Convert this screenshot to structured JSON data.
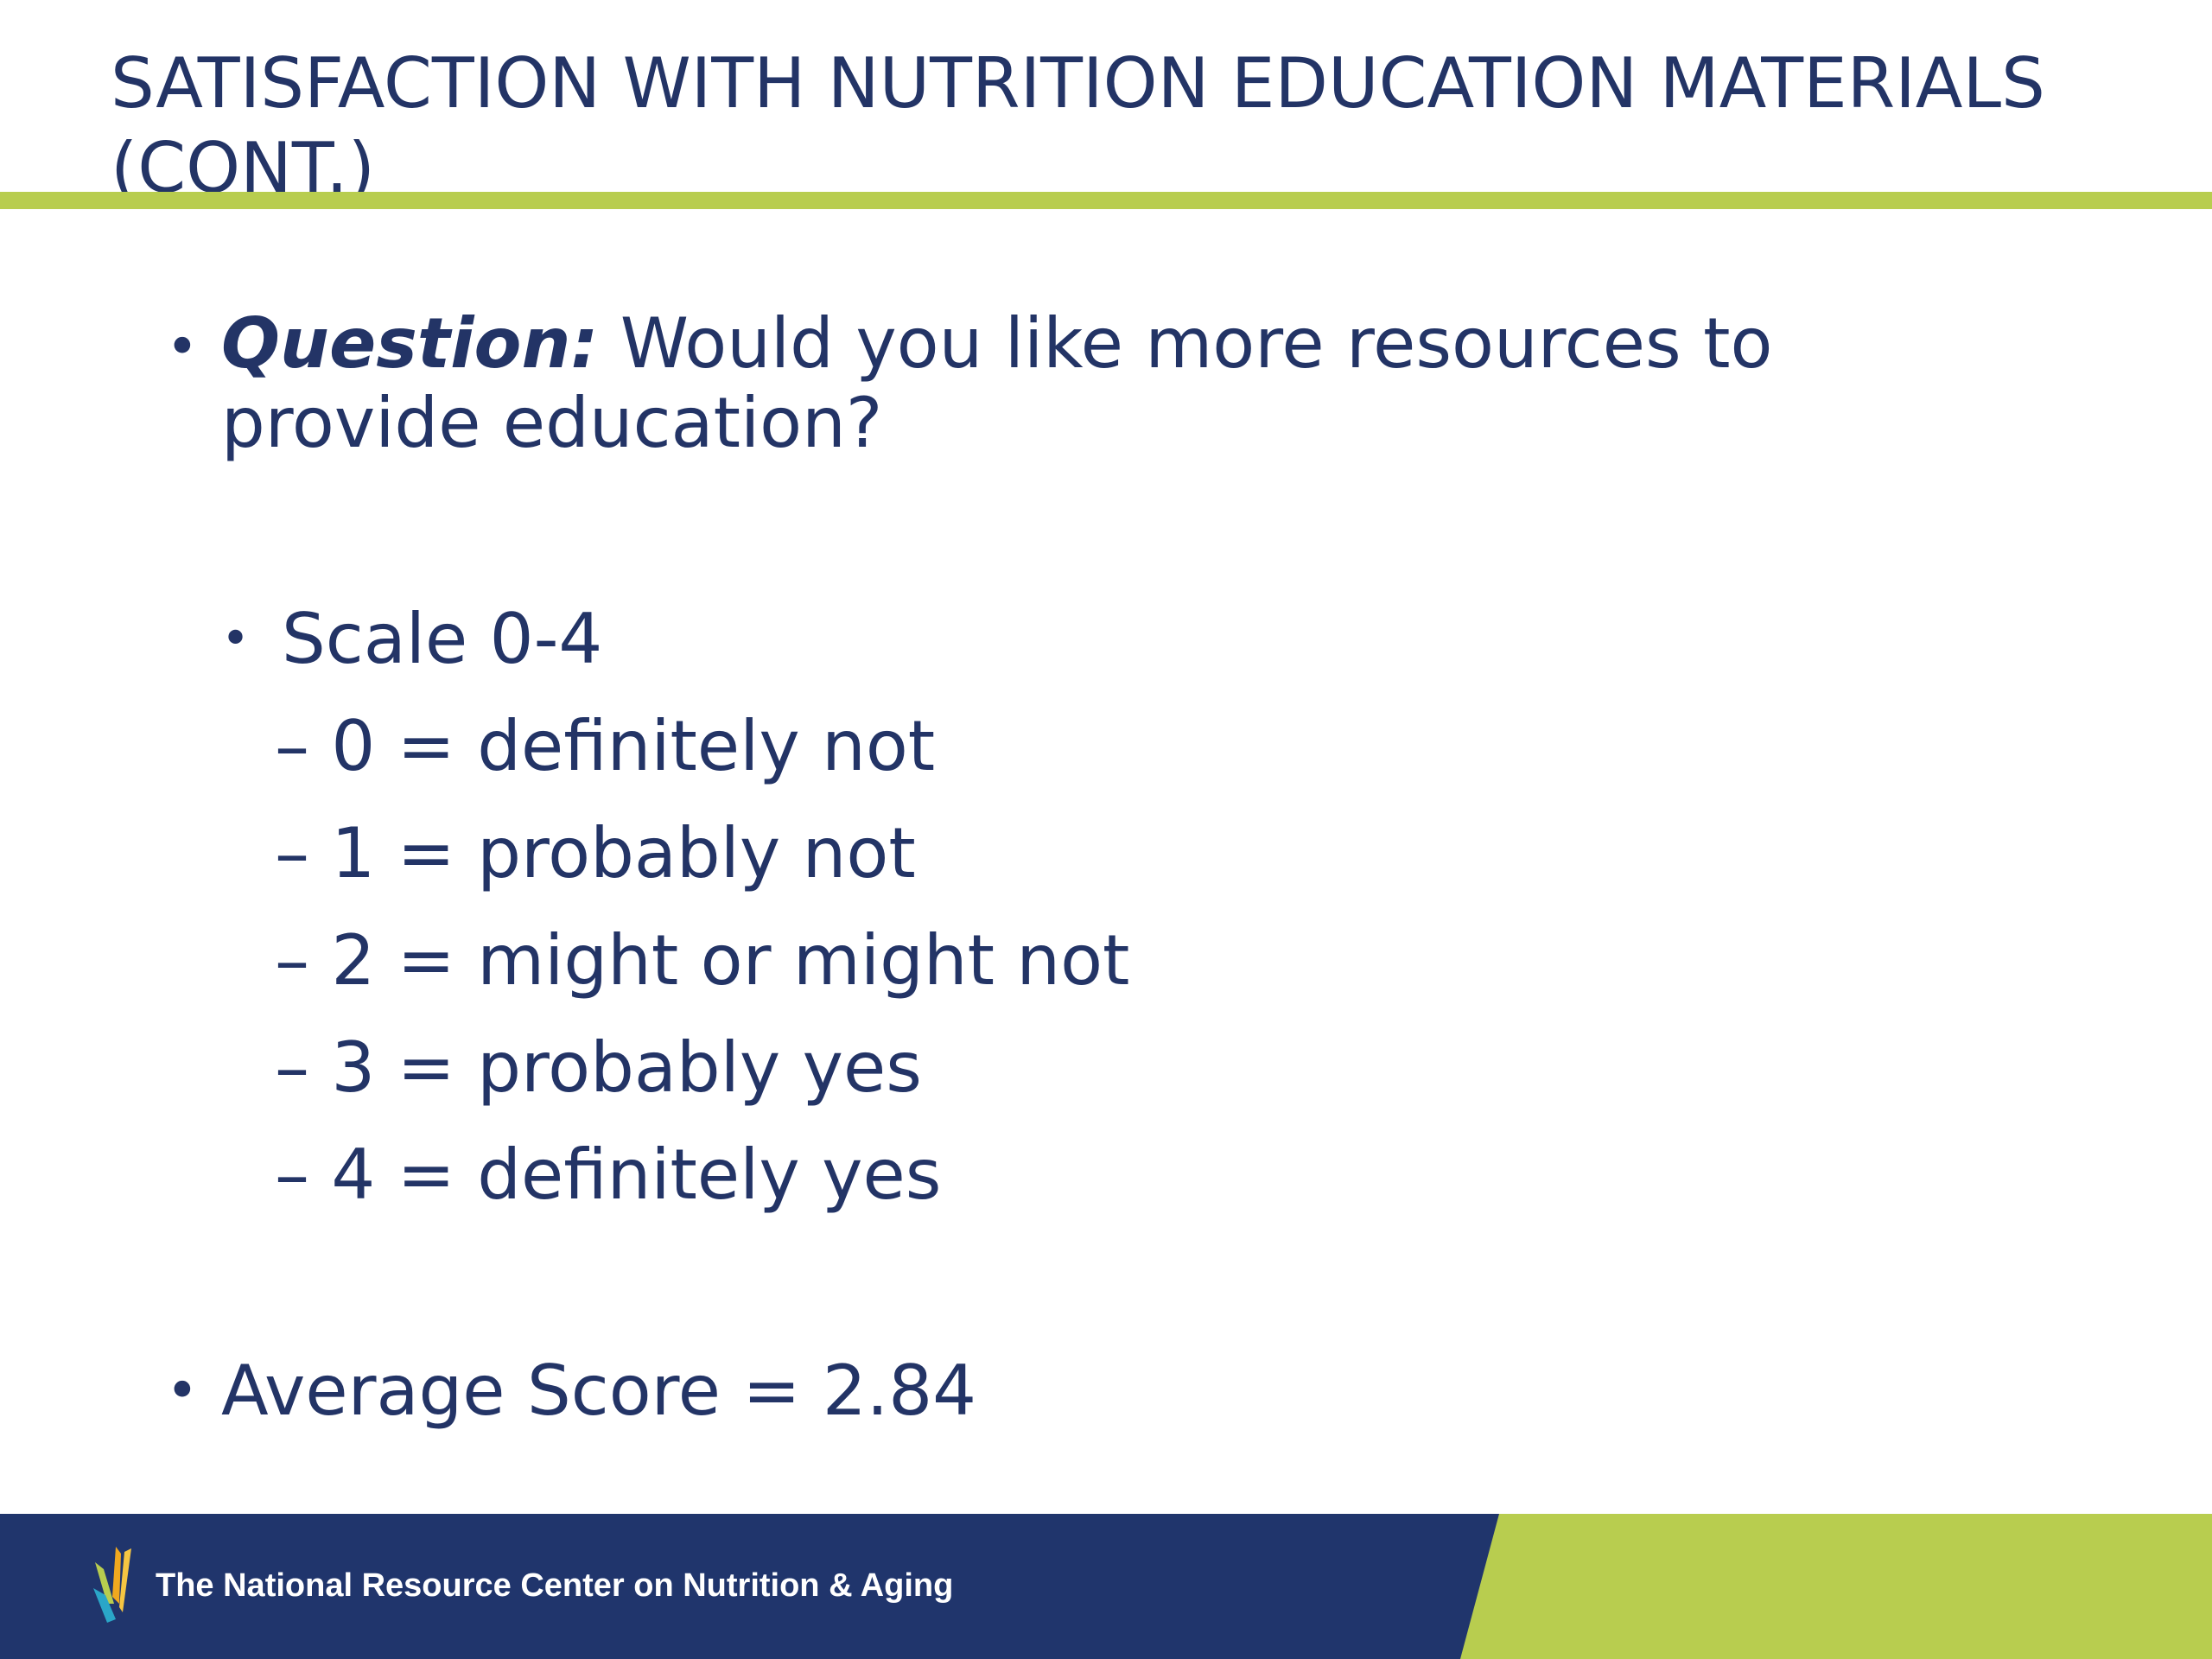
{
  "slide": {
    "title_line1": "SATISFACTION WITH NUTRITION EDUCATION MATERIALS",
    "title_line2": "(CONT.)",
    "bullets": {
      "dot": "•",
      "question_label": "Question:",
      "question_line1": " Would you like more resources to",
      "question_line2": "provide education?",
      "scale_heading": "Scale 0-4",
      "average_score": "Average Score = 2.84"
    },
    "scale_items": [
      "– 0 = definitely not",
      "– 1 = probably not",
      "– 2 = might or might not",
      "– 3 = probably yes",
      "– 4 = definitely yes"
    ]
  },
  "footer": {
    "organization": "The National Resource Center on Nutrition & Aging",
    "logo_icon": "organization-logo-icon"
  },
  "colors": {
    "text": "#233466",
    "accent_green": "#b8cd4f",
    "footer_navy": "#20356c"
  }
}
